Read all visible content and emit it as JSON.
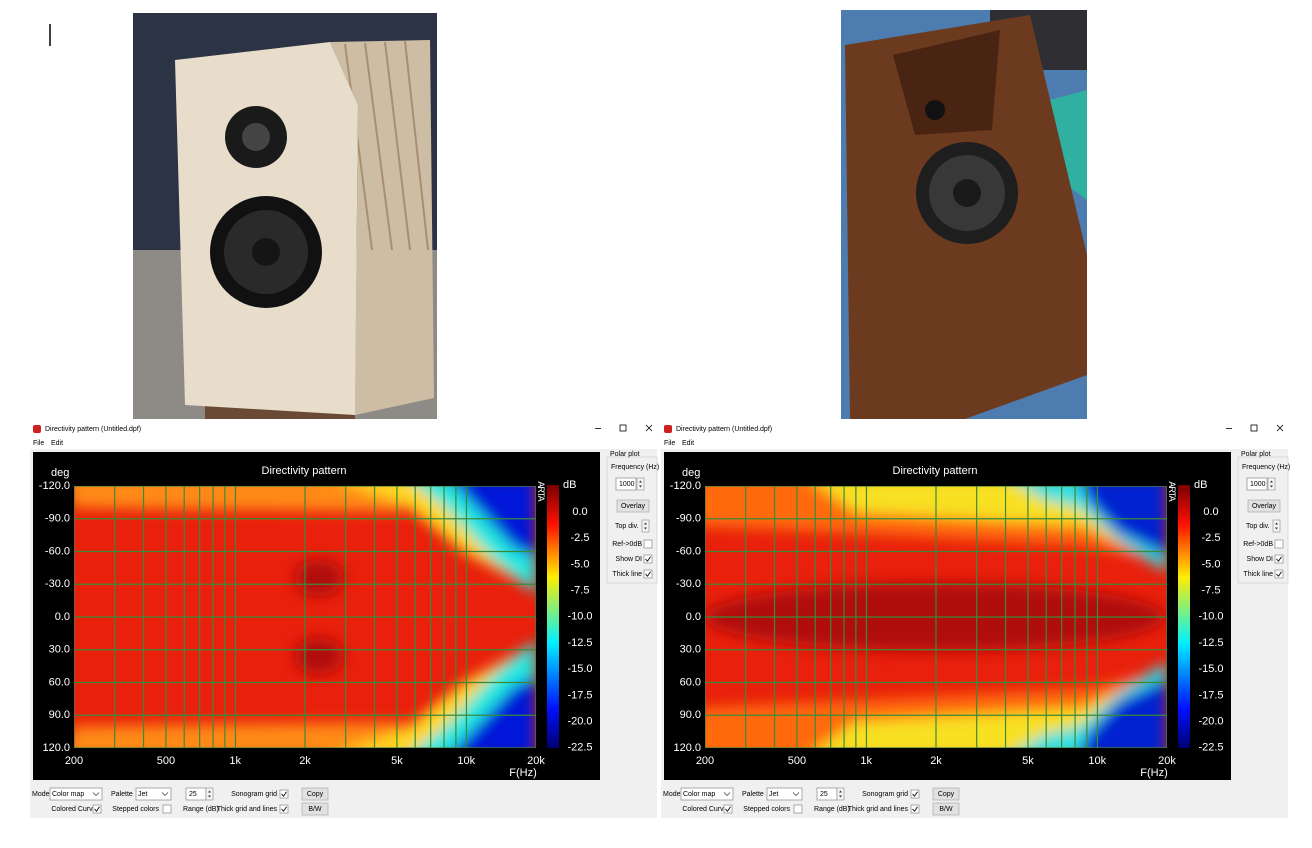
{
  "windows": [
    {
      "title": "Directivity pattern (Untitled.dpf)",
      "menu": [
        "File",
        "Edit"
      ],
      "plot": {
        "title": "Directivity pattern",
        "y_label": "deg",
        "x_label": "F(Hz)",
        "y_ticks": [
          "-120.0",
          "-90.0",
          "-60.0",
          "-30.0",
          "0.0",
          "30.0",
          "60.0",
          "90.0",
          "120.0"
        ],
        "x_ticks": [
          "200",
          "500",
          "1k",
          "2k",
          "5k",
          "10k",
          "20k"
        ],
        "brand": "ARTA",
        "colorbar_label": "dB",
        "colorbar_ticks": [
          "0.0",
          "-2.5",
          "-5.0",
          "-7.5",
          "-10.0",
          "-12.5",
          "-15.0",
          "-17.5",
          "-20.0",
          "-22.5"
        ]
      },
      "side_panel": {
        "header": "Polar plot",
        "frequency_label": "Frequency (Hz)",
        "frequency": "1000",
        "overlay": "Overlay",
        "top_div": "Top div.",
        "checkboxes": [
          {
            "label": "Ref->0dB",
            "checked": false
          },
          {
            "label": "Show DI",
            "checked": true
          },
          {
            "label": "Thick line",
            "checked": true
          }
        ]
      },
      "controls": {
        "mode_label": "Mode",
        "mode": "Color map",
        "palette_label": "Palette",
        "palette": "Jet",
        "range": "25",
        "range_label": "Range (dB)",
        "sonogram_grid": {
          "label": "Sonogram grid",
          "checked": true
        },
        "colored_curves": {
          "label": "Colored Curves",
          "checked": true
        },
        "stepped_colors": {
          "label": "Stepped colors",
          "checked": false
        },
        "thick_grid": {
          "label": "Thick grid and  lines",
          "checked": true
        },
        "copy": "Copy",
        "bw": "B/W"
      }
    },
    {
      "title": "Directivity pattern (Untitled.dpf)",
      "menu": [
        "File",
        "Edit"
      ],
      "plot": {
        "title": "Directivity pattern",
        "y_label": "deg",
        "x_label": "F(Hz)",
        "y_ticks": [
          "-120.0",
          "-90.0",
          "-60.0",
          "-30.0",
          "0.0",
          "30.0",
          "60.0",
          "90.0",
          "120.0"
        ],
        "x_ticks": [
          "200",
          "500",
          "1k",
          "2k",
          "5k",
          "10k",
          "20k"
        ],
        "brand": "ARTA",
        "colorbar_label": "dB",
        "colorbar_ticks": [
          "0.0",
          "-2.5",
          "-5.0",
          "-7.5",
          "-10.0",
          "-12.5",
          "-15.0",
          "-17.5",
          "-20.0",
          "-22.5"
        ]
      },
      "side_panel": {
        "header": "Polar plot",
        "frequency_label": "Frequency (Hz)",
        "frequency": "1000",
        "overlay": "Overlay",
        "top_div": "Top div.",
        "checkboxes": [
          {
            "label": "Ref->0dB",
            "checked": false
          },
          {
            "label": "Show DI",
            "checked": true
          },
          {
            "label": "Thick line",
            "checked": true
          }
        ]
      },
      "controls": {
        "mode_label": "Mode",
        "mode": "Color map",
        "palette_label": "Palette",
        "palette": "Jet",
        "range": "25",
        "range_label": "Range (dB)",
        "sonogram_grid": {
          "label": "Sonogram grid",
          "checked": true
        },
        "colored_curves": {
          "label": "Colored Curves",
          "checked": true
        },
        "stepped_colors": {
          "label": "Stepped colors",
          "checked": false
        },
        "thick_grid": {
          "label": "Thick grid and  lines",
          "checked": true
        },
        "copy": "Copy",
        "bw": "B/W"
      }
    }
  ]
}
